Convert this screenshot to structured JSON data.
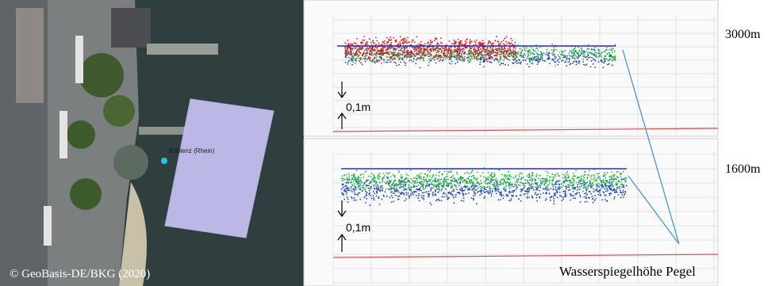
{
  "map": {
    "place_label": "Koblenz (Rhein)",
    "copyright": "© GeoBasis-DE/BKG (2020)"
  },
  "panels": [
    {
      "distance_label": "3000m",
      "offset_label": "0,1m"
    },
    {
      "distance_label": "1600m",
      "offset_label": "0,1m"
    }
  ],
  "annotation": "Wasserspiegelhöhe Pegel"
}
